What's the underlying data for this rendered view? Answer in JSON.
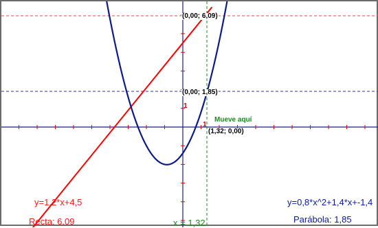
{
  "applet": {
    "colors": {
      "axis": "#1a1a8c",
      "axis_tick": "#e00000",
      "line": "#ff0000",
      "parabola": "#0d1a8a",
      "guide_red": "#ff4040",
      "guide_blue": "#3030a0",
      "guide_green": "#1e8a1e",
      "border": "#6b6b6b"
    },
    "labels": {
      "point_top": "(0,00; 6,09)",
      "point_mid": "(0,00; 1,85)",
      "point_axis": "(1,32; 0,00)",
      "drag_hint": "Mueve aquí",
      "tick_y": "1",
      "tick_x": "1",
      "line_equation": "y=1,2*x+4,5",
      "parabola_equation": "y=0,8*x^2+1,4*x+-1,4",
      "line_value": "Recta: 6,09",
      "parabola_value": "Parábola: 1,85",
      "x_value": "x = 1,32"
    },
    "math": {
      "line": {
        "slope": 1.2,
        "intercept": 4.5
      },
      "parabola": {
        "a": 0.8,
        "b": 1.4,
        "c": -1.4
      },
      "x_selected": 1.32,
      "y_line": 6.09,
      "y_parabola": 1.85
    }
  }
}
